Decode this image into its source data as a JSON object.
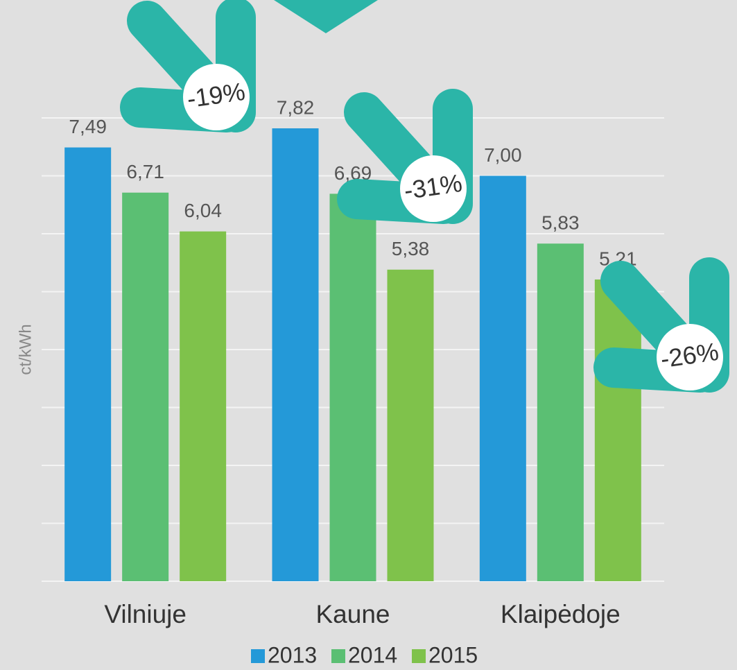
{
  "chart_data": {
    "type": "bar",
    "y_label": "ct/kWh",
    "categories": [
      "Vilniuje",
      "Kaune",
      "Klaipėdoje"
    ],
    "series": [
      {
        "name": "2013",
        "color": "#2499d8",
        "values": [
          7.49,
          7.82,
          7.0
        ],
        "value_labels": [
          "7,49",
          "7,82",
          "7,00"
        ]
      },
      {
        "name": "2014",
        "color": "#5bbf73",
        "values": [
          6.71,
          6.69,
          5.83
        ],
        "value_labels": [
          "6,71",
          "6,69",
          "5,83"
        ]
      },
      {
        "name": "2015",
        "color": "#7fc24b",
        "values": [
          6.04,
          5.38,
          5.21
        ],
        "value_labels": [
          "6,04",
          "5,38",
          "5,21"
        ]
      }
    ],
    "ylim": [
      0,
      8
    ],
    "grid_lines": [
      0,
      1,
      2,
      3,
      4,
      5,
      6,
      7,
      8
    ],
    "annotations": [
      "-19%",
      "-31%",
      "-26%"
    ]
  }
}
